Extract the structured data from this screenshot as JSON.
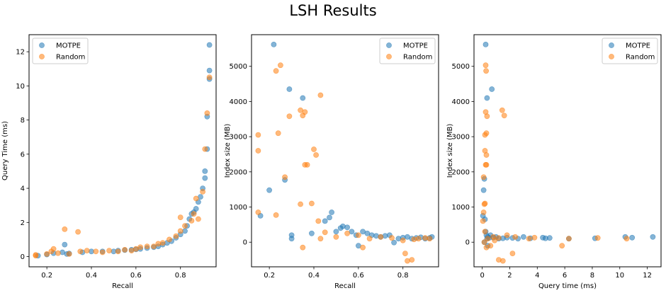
{
  "figure_title": "LSH Results",
  "colors": {
    "MOTPE": "#1f77b4",
    "Random": "#ff7f0e"
  },
  "chart_data": [
    {
      "type": "scatter",
      "xlabel": "Recall",
      "ylabel": "Query Time (ms)",
      "xlim": [
        0.12,
        0.96
      ],
      "ylim": [
        -0.6,
        13.0
      ],
      "xticks": [
        0.2,
        0.4,
        0.6,
        0.8
      ],
      "xtick_labels": [
        "0.2",
        "0.4",
        "0.6",
        "0.8"
      ],
      "yticks": [
        0,
        2,
        4,
        6,
        8,
        10,
        12
      ],
      "ytick_labels": [
        "0",
        "2",
        "4",
        "6",
        "8",
        "10",
        "12"
      ],
      "legend": "top-left",
      "series": [
        {
          "name": "MOTPE",
          "points": [
            [
              0.16,
              0.05
            ],
            [
              0.2,
              0.12
            ],
            [
              0.23,
              0.2
            ],
            [
              0.27,
              0.25
            ],
            [
              0.28,
              0.7
            ],
            [
              0.29,
              0.15
            ],
            [
              0.3,
              0.18
            ],
            [
              0.36,
              0.25
            ],
            [
              0.4,
              0.3
            ],
            [
              0.45,
              0.3
            ],
            [
              0.5,
              0.3
            ],
            [
              0.52,
              0.35
            ],
            [
              0.55,
              0.38
            ],
            [
              0.58,
              0.4
            ],
            [
              0.6,
              0.42
            ],
            [
              0.62,
              0.45
            ],
            [
              0.65,
              0.5
            ],
            [
              0.68,
              0.55
            ],
            [
              0.7,
              0.6
            ],
            [
              0.72,
              0.7
            ],
            [
              0.74,
              0.8
            ],
            [
              0.76,
              0.9
            ],
            [
              0.78,
              1.1
            ],
            [
              0.8,
              1.3
            ],
            [
              0.82,
              1.5
            ],
            [
              0.83,
              1.8
            ],
            [
              0.84,
              2.2
            ],
            [
              0.85,
              2.5
            ],
            [
              0.86,
              2.6
            ],
            [
              0.87,
              2.8
            ],
            [
              0.88,
              3.2
            ],
            [
              0.89,
              3.5
            ],
            [
              0.9,
              4.0
            ],
            [
              0.91,
              4.6
            ],
            [
              0.91,
              5.0
            ],
            [
              0.92,
              6.3
            ],
            [
              0.92,
              8.2
            ],
            [
              0.93,
              10.4
            ],
            [
              0.93,
              10.9
            ],
            [
              0.93,
              12.4
            ]
          ]
        },
        {
          "name": "Random",
          "points": [
            [
              0.15,
              0.05
            ],
            [
              0.15,
              0.1
            ],
            [
              0.2,
              0.15
            ],
            [
              0.22,
              0.3
            ],
            [
              0.23,
              0.45
            ],
            [
              0.25,
              0.2
            ],
            [
              0.28,
              1.6
            ],
            [
              0.3,
              0.15
            ],
            [
              0.34,
              1.45
            ],
            [
              0.35,
              0.3
            ],
            [
              0.38,
              0.35
            ],
            [
              0.42,
              0.3
            ],
            [
              0.45,
              0.25
            ],
            [
              0.48,
              0.35
            ],
            [
              0.52,
              0.3
            ],
            [
              0.55,
              0.4
            ],
            [
              0.58,
              0.35
            ],
            [
              0.6,
              0.45
            ],
            [
              0.62,
              0.55
            ],
            [
              0.65,
              0.6
            ],
            [
              0.68,
              0.6
            ],
            [
              0.7,
              0.75
            ],
            [
              0.72,
              0.8
            ],
            [
              0.75,
              1.0
            ],
            [
              0.78,
              1.2
            ],
            [
              0.8,
              1.5
            ],
            [
              0.8,
              2.3
            ],
            [
              0.82,
              1.8
            ],
            [
              0.85,
              2.1
            ],
            [
              0.86,
              2.5
            ],
            [
              0.87,
              3.4
            ],
            [
              0.88,
              2.2
            ],
            [
              0.9,
              3.8
            ],
            [
              0.91,
              6.3
            ],
            [
              0.92,
              8.4
            ],
            [
              0.93,
              10.5
            ]
          ]
        }
      ]
    },
    {
      "type": "scatter",
      "xlabel": "Recall",
      "ylabel": "Index size (MB)",
      "xlim": [
        0.12,
        0.96
      ],
      "ylim": [
        -700,
        5900
      ],
      "xticks": [
        0.2,
        0.4,
        0.6,
        0.8
      ],
      "xtick_labels": [
        "0.2",
        "0.4",
        "0.6",
        "0.8"
      ],
      "yticks": [
        0,
        1000,
        2000,
        3000,
        4000,
        5000
      ],
      "ytick_labels": [
        "0",
        "1000",
        "2000",
        "3000",
        "4000",
        "5000"
      ],
      "legend": "top-right",
      "series": [
        {
          "name": "MOTPE",
          "points": [
            [
              0.22,
              5620
            ],
            [
              0.29,
              4350
            ],
            [
              0.35,
              4100
            ],
            [
              0.27,
              1770
            ],
            [
              0.2,
              1480
            ],
            [
              0.16,
              750
            ],
            [
              0.3,
              200
            ],
            [
              0.3,
              100
            ],
            [
              0.39,
              250
            ],
            [
              0.45,
              600
            ],
            [
              0.47,
              700
            ],
            [
              0.48,
              850
            ],
            [
              0.5,
              300
            ],
            [
              0.52,
              400
            ],
            [
              0.53,
              450
            ],
            [
              0.55,
              420
            ],
            [
              0.57,
              300
            ],
            [
              0.59,
              200
            ],
            [
              0.6,
              -100
            ],
            [
              0.62,
              300
            ],
            [
              0.64,
              250
            ],
            [
              0.66,
              200
            ],
            [
              0.68,
              180
            ],
            [
              0.7,
              150
            ],
            [
              0.72,
              180
            ],
            [
              0.74,
              200
            ],
            [
              0.76,
              -10
            ],
            [
              0.78,
              100
            ],
            [
              0.8,
              130
            ],
            [
              0.82,
              150
            ],
            [
              0.84,
              100
            ],
            [
              0.86,
              120
            ],
            [
              0.88,
              140
            ],
            [
              0.9,
              100
            ],
            [
              0.92,
              120
            ],
            [
              0.93,
              150
            ]
          ]
        },
        {
          "name": "Random",
          "points": [
            [
              0.15,
              3050
            ],
            [
              0.15,
              2600
            ],
            [
              0.15,
              850
            ],
            [
              0.23,
              4870
            ],
            [
              0.25,
              5030
            ],
            [
              0.24,
              3100
            ],
            [
              0.27,
              1850
            ],
            [
              0.29,
              3580
            ],
            [
              0.34,
              3750
            ],
            [
              0.35,
              3600
            ],
            [
              0.36,
              3700
            ],
            [
              0.36,
              2200
            ],
            [
              0.37,
              2200
            ],
            [
              0.4,
              2640
            ],
            [
              0.41,
              2480
            ],
            [
              0.43,
              4180
            ],
            [
              0.34,
              1080
            ],
            [
              0.39,
              1100
            ],
            [
              0.42,
              600
            ],
            [
              0.23,
              770
            ],
            [
              0.45,
              280
            ],
            [
              0.35,
              -150
            ],
            [
              0.43,
              100
            ],
            [
              0.5,
              150
            ],
            [
              0.55,
              250
            ],
            [
              0.6,
              200
            ],
            [
              0.62,
              -150
            ],
            [
              0.65,
              100
            ],
            [
              0.7,
              150
            ],
            [
              0.75,
              120
            ],
            [
              0.8,
              50
            ],
            [
              0.81,
              -320
            ],
            [
              0.82,
              -530
            ],
            [
              0.84,
              -500
            ],
            [
              0.85,
              80
            ],
            [
              0.87,
              100
            ],
            [
              0.9,
              120
            ],
            [
              0.92,
              100
            ]
          ]
        }
      ]
    },
    {
      "type": "scatter",
      "xlabel": "Query time (ms)",
      "ylabel": "Index size (MB)",
      "xlim": [
        -0.6,
        13.0
      ],
      "ylim": [
        -700,
        5900
      ],
      "xticks": [
        0,
        2,
        4,
        6,
        8,
        10,
        12
      ],
      "xtick_labels": [
        "0",
        "2",
        "4",
        "6",
        "8",
        "10",
        "12"
      ],
      "yticks": [
        0,
        1000,
        2000,
        3000,
        4000,
        5000
      ],
      "ytick_labels": [
        "0",
        "1000",
        "2000",
        "3000",
        "4000",
        "5000"
      ],
      "legend": "top-right",
      "series": [
        {
          "name": "MOTPE",
          "points": [
            [
              0.25,
              5620
            ],
            [
              0.35,
              4100
            ],
            [
              0.7,
              4350
            ],
            [
              0.1,
              1480
            ],
            [
              0.15,
              1800
            ],
            [
              0.05,
              750
            ],
            [
              0.2,
              650
            ],
            [
              0.25,
              300
            ],
            [
              0.3,
              200
            ],
            [
              0.35,
              100
            ],
            [
              0.4,
              150
            ],
            [
              0.5,
              120
            ],
            [
              0.6,
              200
            ],
            [
              0.8,
              130
            ],
            [
              1.0,
              150
            ],
            [
              1.2,
              100
            ],
            [
              1.5,
              110
            ],
            [
              1.8,
              130
            ],
            [
              2.2,
              120
            ],
            [
              2.6,
              100
            ],
            [
              3.0,
              150
            ],
            [
              3.5,
              110
            ],
            [
              4.4,
              130
            ],
            [
              4.6,
              110
            ],
            [
              4.9,
              120
            ],
            [
              6.3,
              100
            ],
            [
              8.2,
              110
            ],
            [
              10.4,
              150
            ],
            [
              10.9,
              130
            ],
            [
              12.4,
              150
            ],
            [
              0.15,
              0
            ],
            [
              0.4,
              -100
            ]
          ]
        },
        {
          "name": "Random",
          "points": [
            [
              0.25,
              5030
            ],
            [
              0.28,
              4870
            ],
            [
              0.2,
              3050
            ],
            [
              0.3,
              3100
            ],
            [
              0.25,
              3700
            ],
            [
              0.35,
              3580
            ],
            [
              1.45,
              3750
            ],
            [
              1.6,
              3600
            ],
            [
              0.2,
              2600
            ],
            [
              0.3,
              2480
            ],
            [
              0.25,
              2200
            ],
            [
              0.3,
              2200
            ],
            [
              0.1,
              1850
            ],
            [
              0.15,
              1080
            ],
            [
              0.2,
              1100
            ],
            [
              0.1,
              850
            ],
            [
              0.05,
              600
            ],
            [
              0.2,
              300
            ],
            [
              0.3,
              -150
            ],
            [
              0.6,
              -100
            ],
            [
              1.2,
              -500
            ],
            [
              1.5,
              -530
            ],
            [
              2.2,
              -320
            ],
            [
              0.4,
              100
            ],
            [
              0.8,
              150
            ],
            [
              1.2,
              120
            ],
            [
              1.8,
              200
            ],
            [
              2.4,
              150
            ],
            [
              3.4,
              100
            ],
            [
              3.8,
              130
            ],
            [
              5.8,
              -100
            ],
            [
              6.3,
              100
            ],
            [
              8.4,
              120
            ],
            [
              10.5,
              100
            ],
            [
              0.15,
              0
            ],
            [
              0.9,
              50
            ]
          ]
        }
      ]
    }
  ]
}
